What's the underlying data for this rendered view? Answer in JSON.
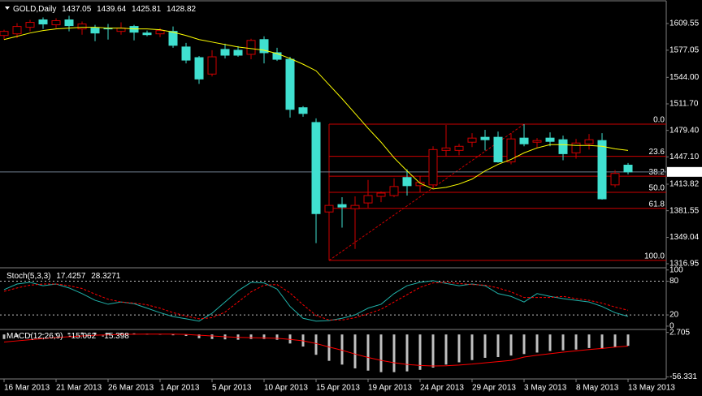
{
  "chart_data": {
    "type": "candlestick",
    "title": "GOLD,Daily",
    "categories": [
      "16 Mar 2013",
      null,
      null,
      null,
      "21 Mar 2013",
      null,
      null,
      null,
      "26 Mar 2013",
      null,
      null,
      null,
      "1 Apr 2013",
      null,
      null,
      null,
      "5 Apr 2013",
      null,
      null,
      null,
      "10 Apr 2013",
      null,
      null,
      null,
      "15 Apr 2013",
      null,
      null,
      null,
      "19 Apr 2013",
      null,
      null,
      null,
      "24 Apr 2013",
      null,
      null,
      null,
      "29 Apr 2013",
      null,
      null,
      null,
      "3 May 2013",
      null,
      null,
      null,
      "8 May 2013",
      null,
      null,
      null,
      "13 May 2013"
    ],
    "open": [
      1595,
      1597,
      1605,
      1614,
      1608,
      1614,
      1603,
      1604,
      1604,
      1600,
      1606,
      1598,
      1597,
      1600,
      1581,
      1568,
      1548,
      1578,
      1577,
      1572,
      1590,
      1574,
      1566,
      1507,
      1489,
      1380,
      1389,
      1384,
      1391,
      1399,
      1400,
      1422,
      1412,
      1413,
      1455,
      1455,
      1465,
      1471,
      1471,
      1441,
      1470,
      1465,
      1470,
      1468,
      1452,
      1463,
      1467,
      1413,
      1437.05
    ],
    "high": [
      1602,
      1610,
      1614,
      1617,
      1616,
      1619,
      1612,
      1608,
      1609,
      1611,
      1608,
      1601,
      1604,
      1606,
      1586,
      1570,
      1577,
      1585,
      1582,
      1591,
      1594,
      1580,
      1569,
      1509,
      1494,
      1395,
      1398,
      1399,
      1419,
      1405,
      1421,
      1432,
      1424,
      1460,
      1486,
      1463,
      1476,
      1480,
      1478,
      1476,
      1487,
      1470,
      1477,
      1473,
      1469,
      1475,
      1476,
      1431,
      1439.64
    ],
    "low": [
      1590,
      1592,
      1600,
      1603,
      1604,
      1600,
      1596,
      1588,
      1590,
      1596,
      1589,
      1594,
      1593,
      1580,
      1561,
      1536,
      1545,
      1567,
      1569,
      1566,
      1561,
      1564,
      1495,
      1496,
      1342,
      1321,
      1361,
      1335,
      1385,
      1392,
      1398,
      1400,
      1404,
      1410,
      1448,
      1449,
      1459,
      1455,
      1440,
      1438,
      1460,
      1458,
      1460,
      1443,
      1445,
      1456,
      1395,
      1410,
      1425.81
    ],
    "close": [
      1600,
      1606,
      1611,
      1609,
      1613,
      1607,
      1609,
      1598,
      1603,
      1604,
      1599,
      1596,
      1601,
      1583,
      1565,
      1542,
      1569,
      1571,
      1571,
      1589,
      1574,
      1566,
      1505,
      1500,
      1378,
      1388,
      1386,
      1388,
      1400,
      1403,
      1411,
      1412,
      1416,
      1456,
      1458,
      1460,
      1470,
      1468,
      1441,
      1469,
      1463,
      1467,
      1466,
      1451,
      1464,
      1468,
      1396,
      1427,
      1428.82
    ],
    "up_color": "#d00000",
    "down_color": "#40e0d0",
    "ylim": [
      1313,
      1636.24
    ],
    "yticks": [
      1609.55,
      1577.05,
      {
        "value": 1544,
        "label": "1544.00"
      },
      {
        "value": 1511.7,
        "label": "1511.70"
      },
      {
        "value": 1479.4,
        "label": "1479.40"
      },
      {
        "value": 1447.1,
        "label": "1447.10"
      },
      1413.82,
      1381.55,
      1349.04,
      1316.95
    ],
    "ma": {
      "color": "#ffff00",
      "values": [
        1590,
        1594,
        1598,
        1601,
        1603,
        1604,
        1605,
        1605,
        1604,
        1604,
        1603,
        1603,
        1602,
        1599,
        1595,
        1590,
        1587,
        1584,
        1581,
        1579,
        1577,
        1573,
        1567,
        1560,
        1552,
        1535,
        1518,
        1500,
        1482,
        1465,
        1446,
        1430,
        1415,
        1408,
        1410,
        1414,
        1420,
        1430,
        1438,
        1444,
        1452,
        1458,
        1462,
        1462,
        1461,
        1461,
        1460,
        1457,
        1455
      ]
    },
    "fib": {
      "color": "#cc0000",
      "high": 1487,
      "low": 1321,
      "levels": [
        {
          "value": 0,
          "label": "0.0"
        },
        23.6,
        38.2,
        {
          "value": 50,
          "label": "50.0"
        },
        61.8,
        {
          "value": 100,
          "label": "100.0"
        }
      ]
    },
    "indicators": [
      {
        "type": "line",
        "name": "Stoch(5,3,3)",
        "ylim": [
          -3,
          101
        ],
        "yticks": [
          100,
          80,
          20,
          0
        ],
        "levels": [
          80,
          20
        ],
        "series": [
          {
            "color": "#20b2aa",
            "values": [
              65,
              75,
              78,
              72,
              75,
              68,
              58,
              46,
              39,
              43,
              40,
              32,
              24,
              17,
              13,
              9,
              23,
              43,
              63,
              78,
              77,
              66,
              35,
              14,
              9,
              10,
              14,
              20,
              32,
              39,
              58,
              72,
              78,
              81,
              76,
              72,
              75,
              72,
              58,
              53,
              43,
              58,
              53,
              49,
              46,
              43,
              35,
              24,
              17.4257
            ]
          },
          {
            "color": "#ff0000",
            "dashed": true,
            "values": [
              62,
              68,
              73,
              75,
              75,
              72,
              67,
              57,
              48,
              43,
              41,
              38,
              32,
              24,
              18,
              13,
              15,
              25,
              43,
              61,
              73,
              74,
              59,
              38,
              19,
              11,
              11,
              15,
              22,
              30,
              43,
              56,
              69,
              77,
              78,
              76,
              74,
              73,
              68,
              61,
              51,
              51,
              51,
              53,
              49,
              46,
              41,
              34,
              28.3271
            ]
          }
        ]
      },
      {
        "type": "macd",
        "name": "MACD(12,26,9)",
        "ylim": [
          -58,
          4.5
        ],
        "yticks": [
          2.705,
          -56.331
        ],
        "series": [
          {
            "color": "#c0c0c0",
            "values": [
              -6,
              -3,
              -1,
              0.5,
              1.5,
              2.2,
              2.7,
              2.5,
              2.2,
              2,
              1.5,
              1,
              0.8,
              0,
              -2,
              -5,
              -6,
              -6.5,
              -7,
              -6,
              -6,
              -7,
              -12,
              -16,
              -27,
              -35,
              -40,
              -45,
              -48,
              -50,
              -50,
              -49,
              -47,
              -44,
              -40,
              -37,
              -34,
              -31,
              -30,
              -28,
              -26,
              -24,
              -22,
              -21,
              -20,
              -18,
              -19,
              -17,
              -15.062
            ]
          },
          {
            "color": "#ff0000",
            "values": [
              -10,
              -8.5,
              -7,
              -5.5,
              -4,
              -3,
              -2,
              -1,
              -0.5,
              0,
              0.3,
              0.5,
              0.5,
              0.4,
              0,
              -1,
              -2,
              -3,
              -3.8,
              -4.3,
              -4.6,
              -5,
              -6.5,
              -8.4,
              -12,
              -16.6,
              -21,
              -26,
              -30.5,
              -34.4,
              -37.5,
              -39.8,
              -41.2,
              -41.8,
              -41.5,
              -40.6,
              -39.3,
              -37.6,
              -36,
              -34.4,
              -30,
              -27.5,
              -25.5,
              -23.5,
              -21.8,
              -20,
              -18.5,
              -16.8,
              -15.398
            ]
          }
        ]
      }
    ]
  }
}
